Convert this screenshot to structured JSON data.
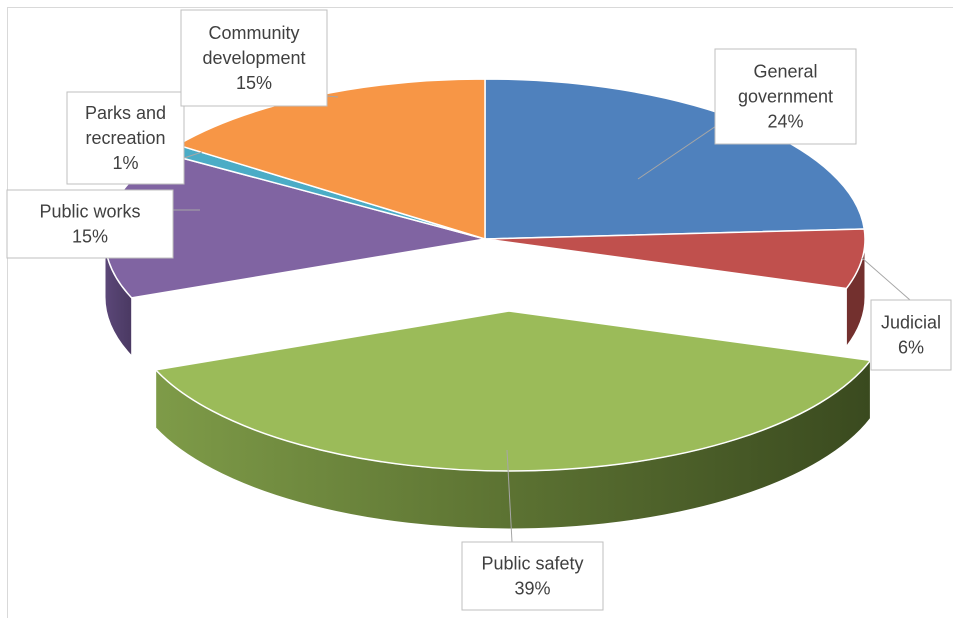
{
  "chart_data": {
    "type": "pie",
    "style": "3d-exploded",
    "slices": [
      {
        "label_lines": [
          "General",
          "government"
        ],
        "value": 24,
        "percent_label": "24%",
        "color": "#4f81bd"
      },
      {
        "label_lines": [
          "Judicial"
        ],
        "value": 6,
        "percent_label": "6%",
        "color": "#c0504d"
      },
      {
        "label_lines": [
          "Public safety"
        ],
        "value": 39,
        "percent_label": "39%",
        "color": "#9bbb59"
      },
      {
        "label_lines": [
          "Public works"
        ],
        "value": 15,
        "percent_label": "15%",
        "color": "#8064a2"
      },
      {
        "label_lines": [
          "Parks and",
          "recreation"
        ],
        "value": 1,
        "percent_label": "1%",
        "color": "#4bacc6"
      },
      {
        "label_lines": [
          "Community",
          "development"
        ],
        "value": 15,
        "percent_label": "15%",
        "color": "#f79646"
      }
    ]
  }
}
